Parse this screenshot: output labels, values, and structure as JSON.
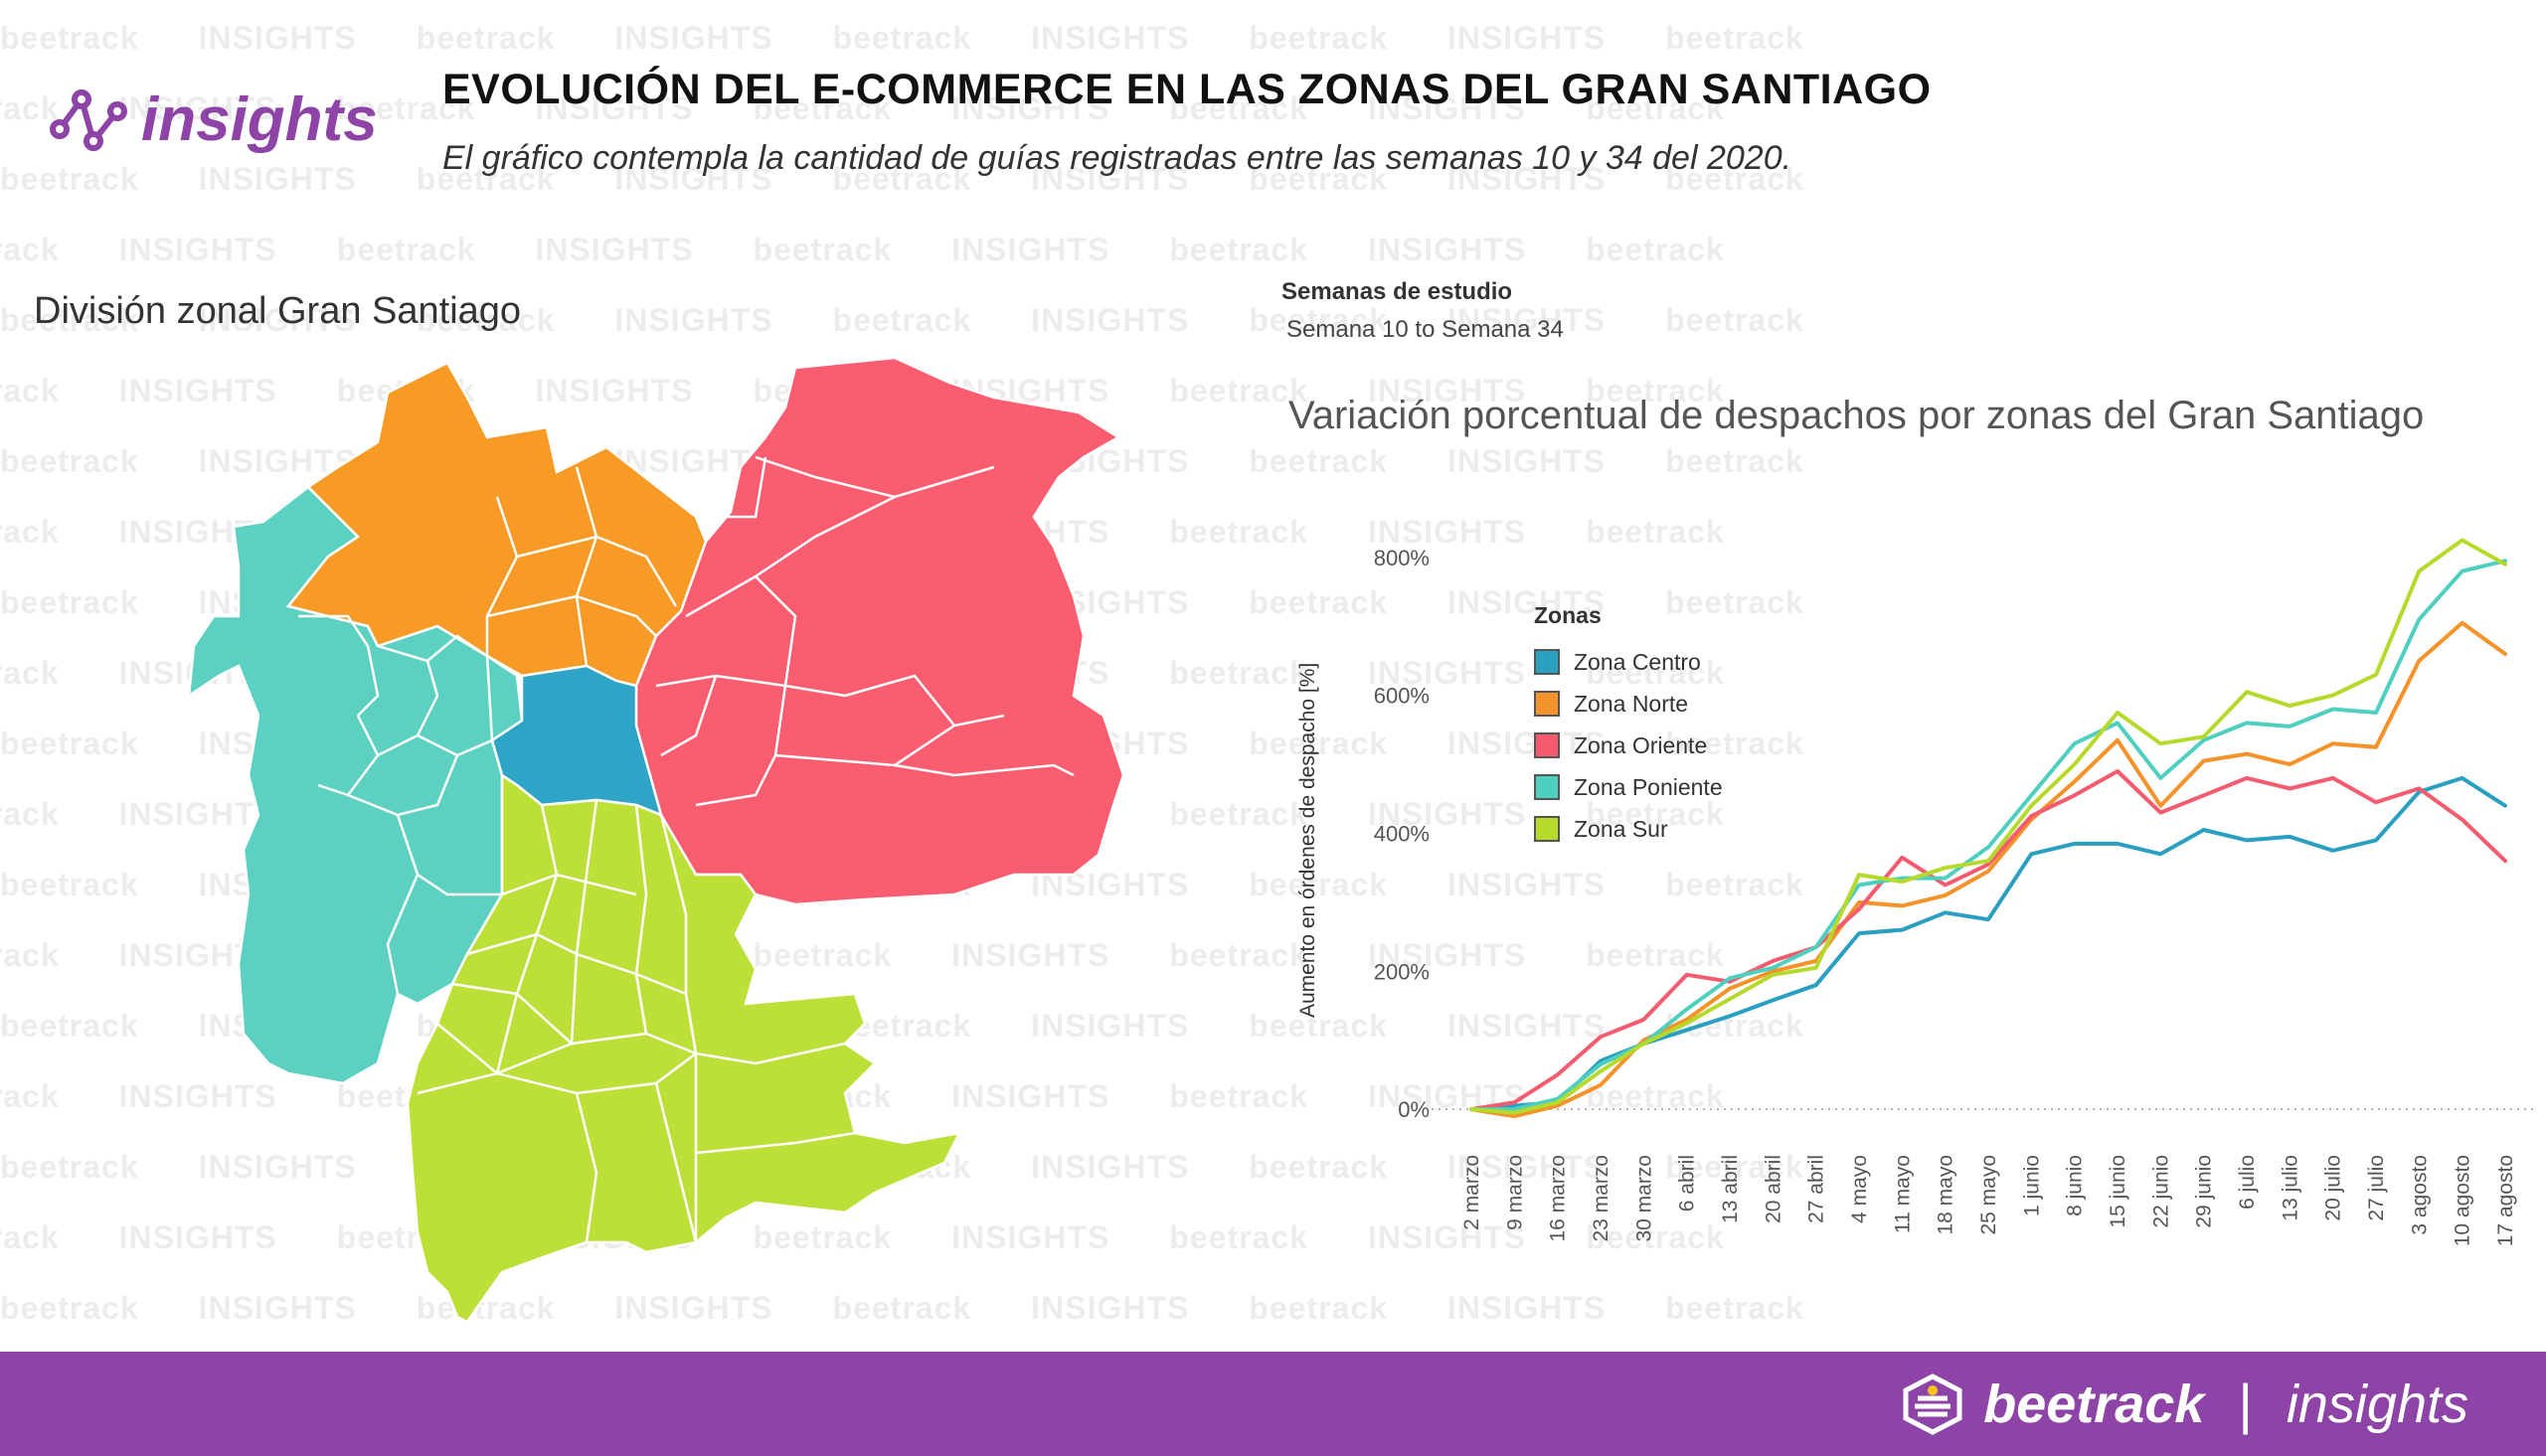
{
  "header": {
    "logo_text": "insights",
    "title": "EVOLUCIÓN DEL E-COMMERCE EN LAS ZONAS DEL GRAN SANTIAGO",
    "subtitle": "El gráfico contempla la cantidad de guías registradas entre las semanas 10 y  34 del 2020."
  },
  "watermark": {
    "brand": "beetrack",
    "tag": "INSIGHTS"
  },
  "map": {
    "title": "División zonal Gran Santiago",
    "zones": [
      {
        "name": "Zona Centro",
        "color": "#2ea4c6"
      },
      {
        "name": "Zona Norte",
        "color": "#f89b26"
      },
      {
        "name": "Zona Oriente",
        "color": "#fa5c70"
      },
      {
        "name": "Zona Poniente",
        "color": "#5dd1c1"
      },
      {
        "name": "Zona Sur",
        "color": "#bde038"
      }
    ]
  },
  "filter": {
    "label": "Semanas de estudio",
    "value": "Semana 10 to Semana 34"
  },
  "chart_data": {
    "type": "line",
    "title": "Variación porcentual de despachos por zonas del Gran Santiago",
    "ylabel": "Aumento en órdenes de despacho [%]",
    "xlabel": "",
    "ylim": [
      -20,
      830
    ],
    "yticks": [
      0,
      200,
      400,
      600,
      800
    ],
    "ytick_labels": [
      "0%",
      "200%",
      "400%",
      "600%",
      "800%"
    ],
    "grid": "dotted zero line",
    "legend": {
      "title": "Zonas",
      "placement": "top-left"
    },
    "categories": [
      "2 marzo",
      "9 marzo",
      "16 marzo",
      "23 marzo",
      "30 marzo",
      "6 abril",
      "13 abril",
      "20 abril",
      "27 abril",
      "4 mayo",
      "11 mayo",
      "18 mayo",
      "25 mayo",
      "1 junio",
      "8 junio",
      "15 junio",
      "22 junio",
      "29 junio",
      "6 julio",
      "13 julio",
      "20 julio",
      "27 julio",
      "3 agosto",
      "10 agosto",
      "17 agosto"
    ],
    "series": [
      {
        "name": "Zona Centro",
        "color": "#2a9fc0",
        "values": [
          0,
          5,
          10,
          70,
          95,
          115,
          135,
          158,
          180,
          255,
          260,
          285,
          275,
          370,
          385,
          385,
          370,
          405,
          390,
          395,
          375,
          390,
          460,
          480,
          440
        ]
      },
      {
        "name": "Zona Norte",
        "color": "#f5932a",
        "values": [
          0,
          -10,
          5,
          35,
          100,
          130,
          175,
          200,
          215,
          300,
          295,
          310,
          345,
          420,
          475,
          535,
          440,
          505,
          515,
          500,
          530,
          525,
          650,
          705,
          660
        ]
      },
      {
        "name": "Zona Oriente",
        "color": "#f45b6e",
        "values": [
          0,
          10,
          50,
          105,
          130,
          195,
          185,
          215,
          235,
          290,
          365,
          325,
          355,
          425,
          455,
          490,
          430,
          455,
          480,
          465,
          480,
          445,
          465,
          420,
          360
        ]
      },
      {
        "name": "Zona Poniente",
        "color": "#4fcfc0",
        "values": [
          0,
          0,
          15,
          65,
          95,
          145,
          190,
          205,
          235,
          325,
          335,
          335,
          380,
          455,
          530,
          560,
          480,
          535,
          560,
          555,
          580,
          575,
          710,
          780,
          795
        ]
      },
      {
        "name": "Zona Sur",
        "color": "#b5da2b",
        "values": [
          0,
          -5,
          10,
          55,
          95,
          125,
          160,
          195,
          205,
          340,
          330,
          350,
          360,
          440,
          500,
          575,
          530,
          540,
          605,
          585,
          600,
          630,
          780,
          825,
          790
        ]
      }
    ]
  },
  "footer": {
    "brand": "beetrack",
    "separator": "|",
    "product": "insights"
  }
}
